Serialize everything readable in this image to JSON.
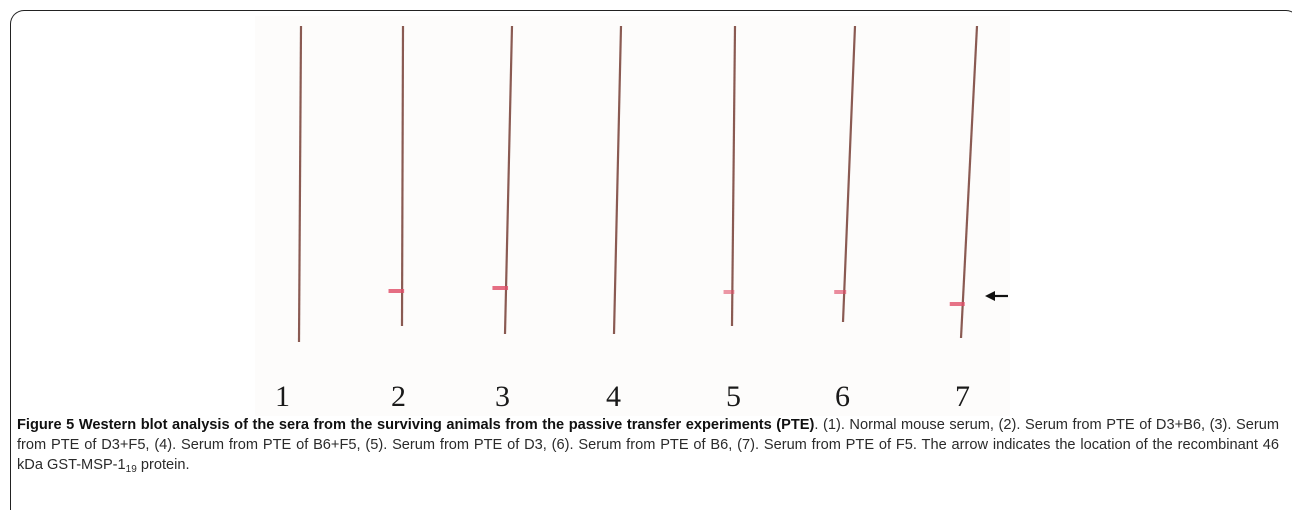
{
  "figure": {
    "lane_labels": [
      "1",
      "2",
      "3",
      "4",
      "5",
      "6",
      "7"
    ],
    "lanes": [
      {
        "label": "1",
        "band": 0.0
      },
      {
        "label": "2",
        "band": 0.8
      },
      {
        "label": "3",
        "band": 0.8
      },
      {
        "label": "4",
        "band": 0.0
      },
      {
        "label": "5",
        "band": 0.4
      },
      {
        "label": "6",
        "band": 0.5
      },
      {
        "label": "7",
        "band": 0.75
      }
    ],
    "arrow_icon": "arrow-left-icon",
    "colors": {
      "strip": "#8a5a52",
      "band": "#e0506a",
      "arrow": "#111111"
    }
  },
  "caption": {
    "bold_text": "Figure 5 Western blot analysis of the sera from the surviving animals from the passive transfer experiments (PTE)",
    "text_before_sub": ". (1). Normal mouse serum, (2). Serum from PTE of D3+B6, (3). Serum from PTE of D3+F5, (4). Serum from PTE of B6+F5, (5). Serum from PTE of D3, (6). Serum from PTE of B6, (7). Serum from PTE of F5. The arrow indicates the location of the recombinant 46 kDa GST-MSP-1",
    "subscript": "19",
    "text_after_sub": " protein."
  }
}
